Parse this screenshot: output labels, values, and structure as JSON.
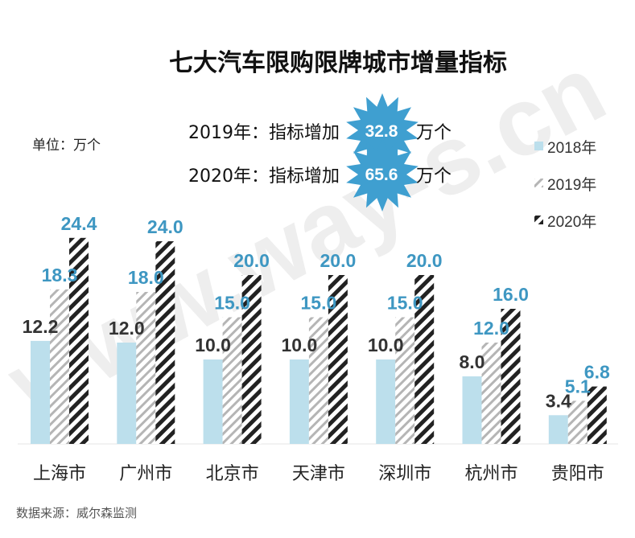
{
  "colors": {
    "s2018": "#bcdfec",
    "s2019_stripe": "#b5b5b5",
    "s2020_stripe": "#222222",
    "label_dark": "#333333",
    "label_blue": "#3e97c2",
    "burst": "#3f9fd0"
  },
  "watermark": "www.way-s.cn",
  "unit": "单位：万个",
  "source": "数据来源：威尔森监测",
  "annotations": [
    {
      "prefix": "2019年：指标增加",
      "value": "32.8",
      "suffix": "万个"
    },
    {
      "prefix": "2020年：指标增加",
      "value": "65.6",
      "suffix": "万个"
    }
  ],
  "chart_data": {
    "type": "bar",
    "title": "七大汽车限购限牌城市增量指标",
    "categories": [
      "上海市",
      "广州市",
      "北京市",
      "天津市",
      "深圳市",
      "杭州市",
      "贵阳市"
    ],
    "series": [
      {
        "name": "2018年",
        "values": [
          12.2,
          12.0,
          10.0,
          10.0,
          10.0,
          8.0,
          3.4
        ]
      },
      {
        "name": "2019年",
        "values": [
          18.3,
          18.0,
          15.0,
          15.0,
          15.0,
          12.0,
          5.1
        ]
      },
      {
        "name": "2020年",
        "values": [
          24.4,
          24.0,
          20.0,
          20.0,
          20.0,
          16.0,
          6.8
        ]
      }
    ],
    "ylim": [
      0,
      30
    ],
    "legend": "right",
    "grid": false
  }
}
